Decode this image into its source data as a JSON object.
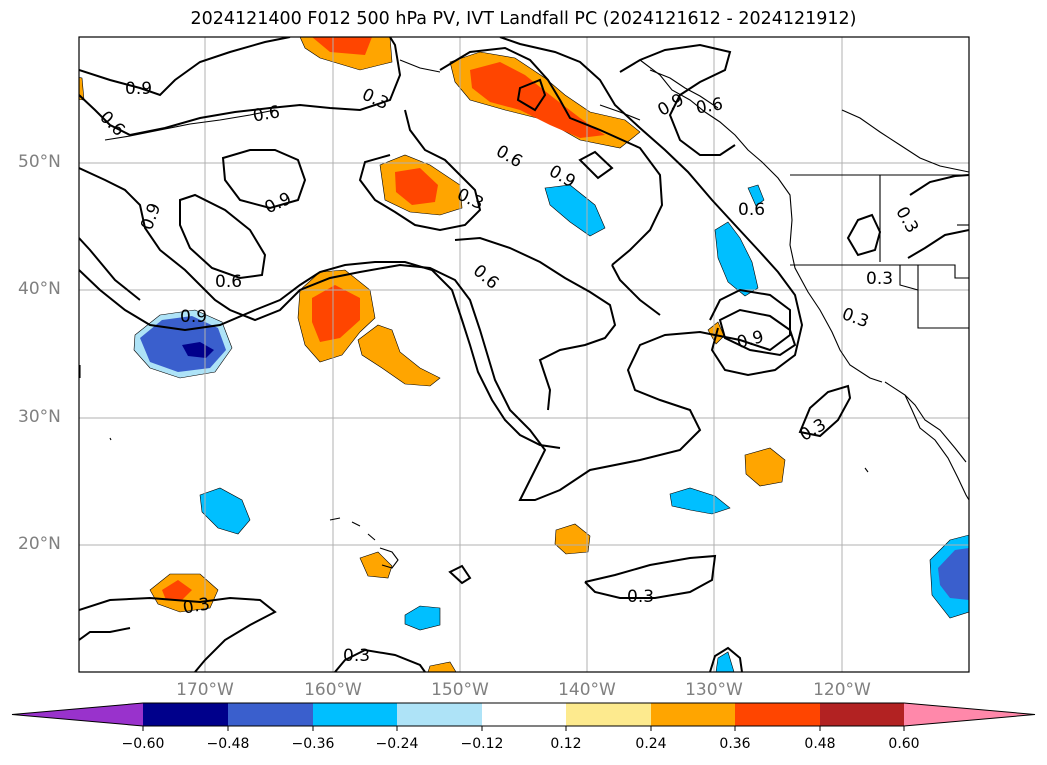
{
  "title": "2024121400 F012 500 hPa PV, IVT Landfall PC (2024121612 - 2024121912)",
  "lat_ticks": [
    "50°N",
    "40°N",
    "30°N",
    "20°N"
  ],
  "lon_ticks": [
    "170°W",
    "160°W",
    "150°W",
    "140°W",
    "130°W",
    "120°W"
  ],
  "colorbar": {
    "tick_labels": [
      "−0.60",
      "−0.48",
      "−0.36",
      "−0.24",
      "−0.12",
      "0.12",
      "0.24",
      "0.36",
      "0.48",
      "0.60"
    ],
    "colors": [
      "#9932cc",
      "#00008b",
      "#3a5fcd",
      "#00bfff",
      "#aee3f7",
      "#ffffff",
      "#fdea8e",
      "#ffa500",
      "#ff4500",
      "#b22222",
      "#ff88aa"
    ]
  },
  "contour_labels": [
    "0.9",
    "0.6",
    "0.3",
    "0.9",
    "0.6",
    "0.9",
    "0.6",
    "0.9",
    "0.6",
    "0.9",
    "0.3",
    "0.6",
    "0.3",
    "0.6",
    "0.9",
    "0.3",
    "0.3",
    "0.3",
    "0.3",
    "0.3",
    "0.3",
    "0.9",
    "0.6"
  ]
}
